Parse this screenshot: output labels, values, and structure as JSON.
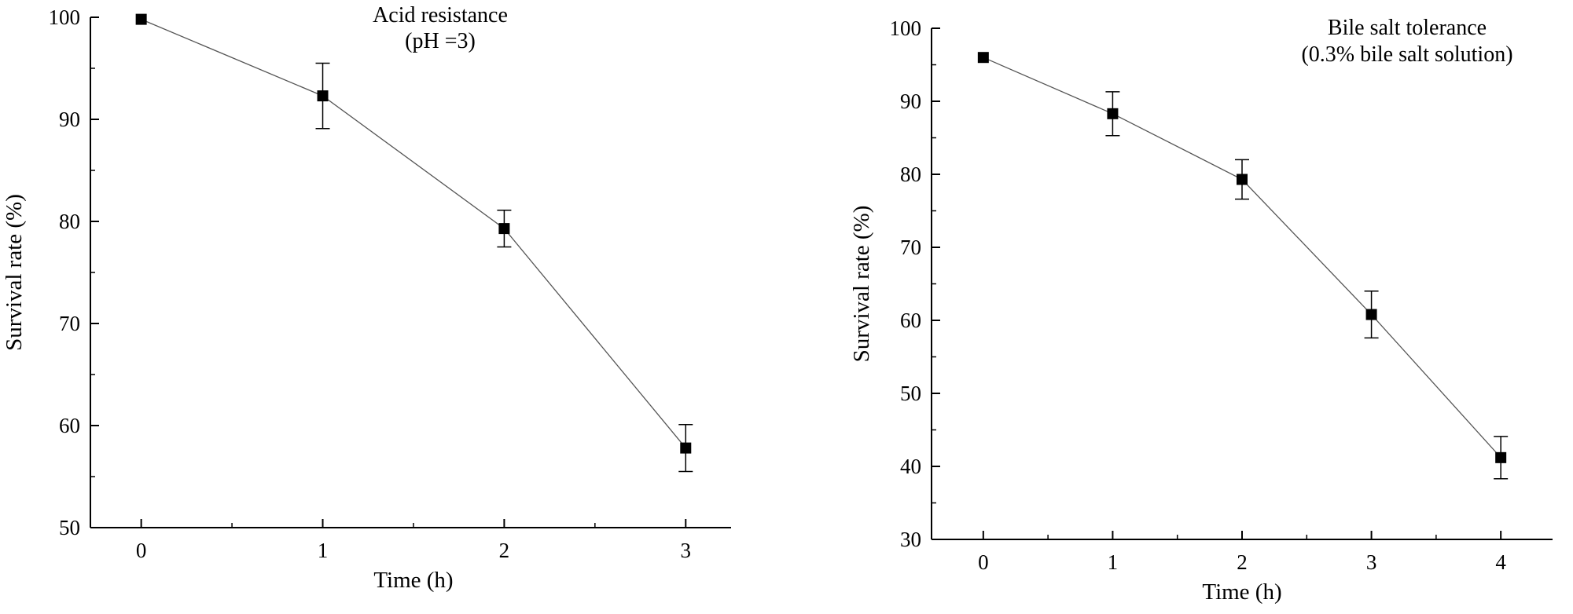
{
  "figure": {
    "background": "#ffffff",
    "text_color": "#000000"
  },
  "chart_data": [
    {
      "type": "line",
      "title": "Acid resistance",
      "subtitle": "(pH =3)",
      "xlabel": "Time (h)",
      "ylabel": "Survival rate (%)",
      "x": [
        0,
        1,
        2,
        3
      ],
      "y": [
        99.8,
        92.3,
        79.3,
        57.8
      ],
      "yerr": [
        0,
        3.2,
        1.8,
        2.3
      ],
      "ylim": [
        50,
        100
      ],
      "yticks": [
        50,
        60,
        70,
        80,
        90,
        100
      ],
      "xticks": [
        0,
        1,
        2,
        3
      ],
      "marker": "square",
      "marker_color": "#000000",
      "line_color": "#555555",
      "axis_color": "#000000",
      "grid": false,
      "legend": "none"
    },
    {
      "type": "line",
      "title": "Bile salt tolerance",
      "subtitle": "(0.3% bile salt solution)",
      "xlabel": "Time (h)",
      "ylabel": "Survival rate (%)",
      "x": [
        0,
        1,
        2,
        3,
        4
      ],
      "y": [
        96.0,
        88.3,
        79.3,
        60.8,
        41.2
      ],
      "yerr": [
        0,
        3.0,
        2.7,
        3.2,
        2.9
      ],
      "ylim": [
        30,
        100
      ],
      "yticks": [
        30,
        40,
        50,
        60,
        70,
        80,
        90,
        100
      ],
      "xticks": [
        0,
        1,
        2,
        3,
        4
      ],
      "marker": "square",
      "marker_color": "#000000",
      "line_color": "#555555",
      "axis_color": "#000000",
      "grid": false,
      "legend": "none"
    }
  ]
}
